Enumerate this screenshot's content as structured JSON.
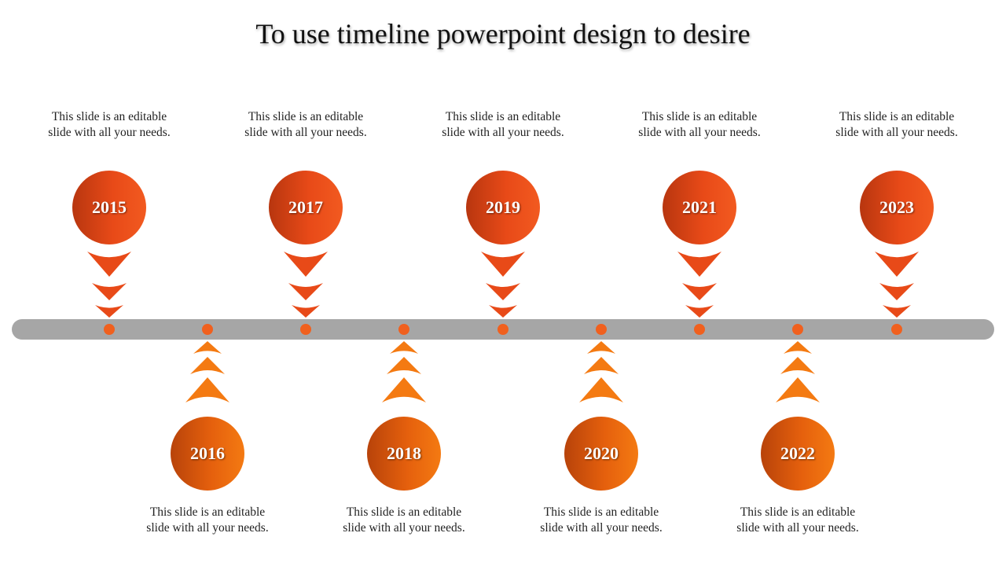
{
  "title": "To use timeline powerpoint design to desire",
  "colors": {
    "bar": "#a6a6a6",
    "dot": "#f0601e",
    "top_accent": "#e84a18",
    "bottom_accent": "#f47a12"
  },
  "milestones": [
    {
      "year": "2015",
      "text": "This slide is an editable slide with all your needs."
    },
    {
      "year": "2016",
      "text": "This slide is an editable slide with all your needs."
    },
    {
      "year": "2017",
      "text": "This slide is an editable slide with all your needs."
    },
    {
      "year": "2018",
      "text": "This slide is an editable slide with all your needs."
    },
    {
      "year": "2019",
      "text": "This slide is an editable slide with all your needs."
    },
    {
      "year": "2020",
      "text": "This slide is an editable slide with all your needs."
    },
    {
      "year": "2021",
      "text": "This slide is an editable slide with all your needs."
    },
    {
      "year": "2022",
      "text": "This slide is an editable slide with all your needs."
    },
    {
      "year": "2023",
      "text": "This slide is an editable slide with all your needs."
    }
  ]
}
